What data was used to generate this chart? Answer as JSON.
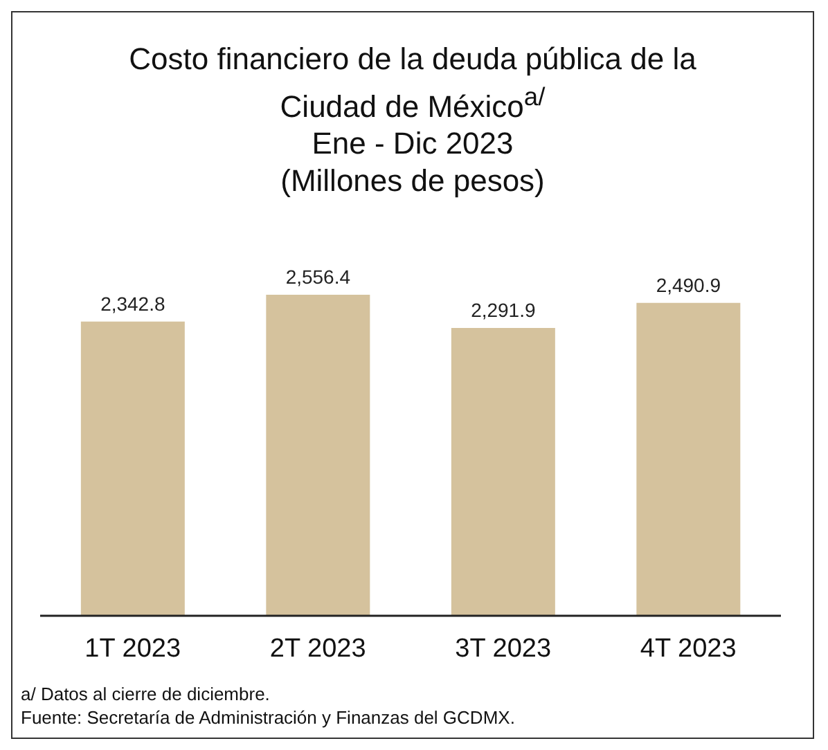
{
  "chart_data": {
    "type": "bar",
    "title": "Costo financiero de la deuda pública de la Ciudad de México$^{a/}$",
    "subtitle": "Ene - Dic 2023\n(Millones de pesos)",
    "categories": [
      "1T 2023",
      "2T 2023",
      "3T 2023",
      "4T 2023"
    ],
    "values": [
      2342.8,
      2556.4,
      2291.9,
      2490.9
    ],
    "value_labels": [
      "2,342.8",
      "2,556.4",
      "2,291.9",
      "2,490.9"
    ],
    "color": "#d5c29d",
    "annotations": [
      "a/ Datos al cierre de diciembre.",
      "Fuente: Secretaría de Administración y Finanzas del GCDMX."
    ]
  }
}
